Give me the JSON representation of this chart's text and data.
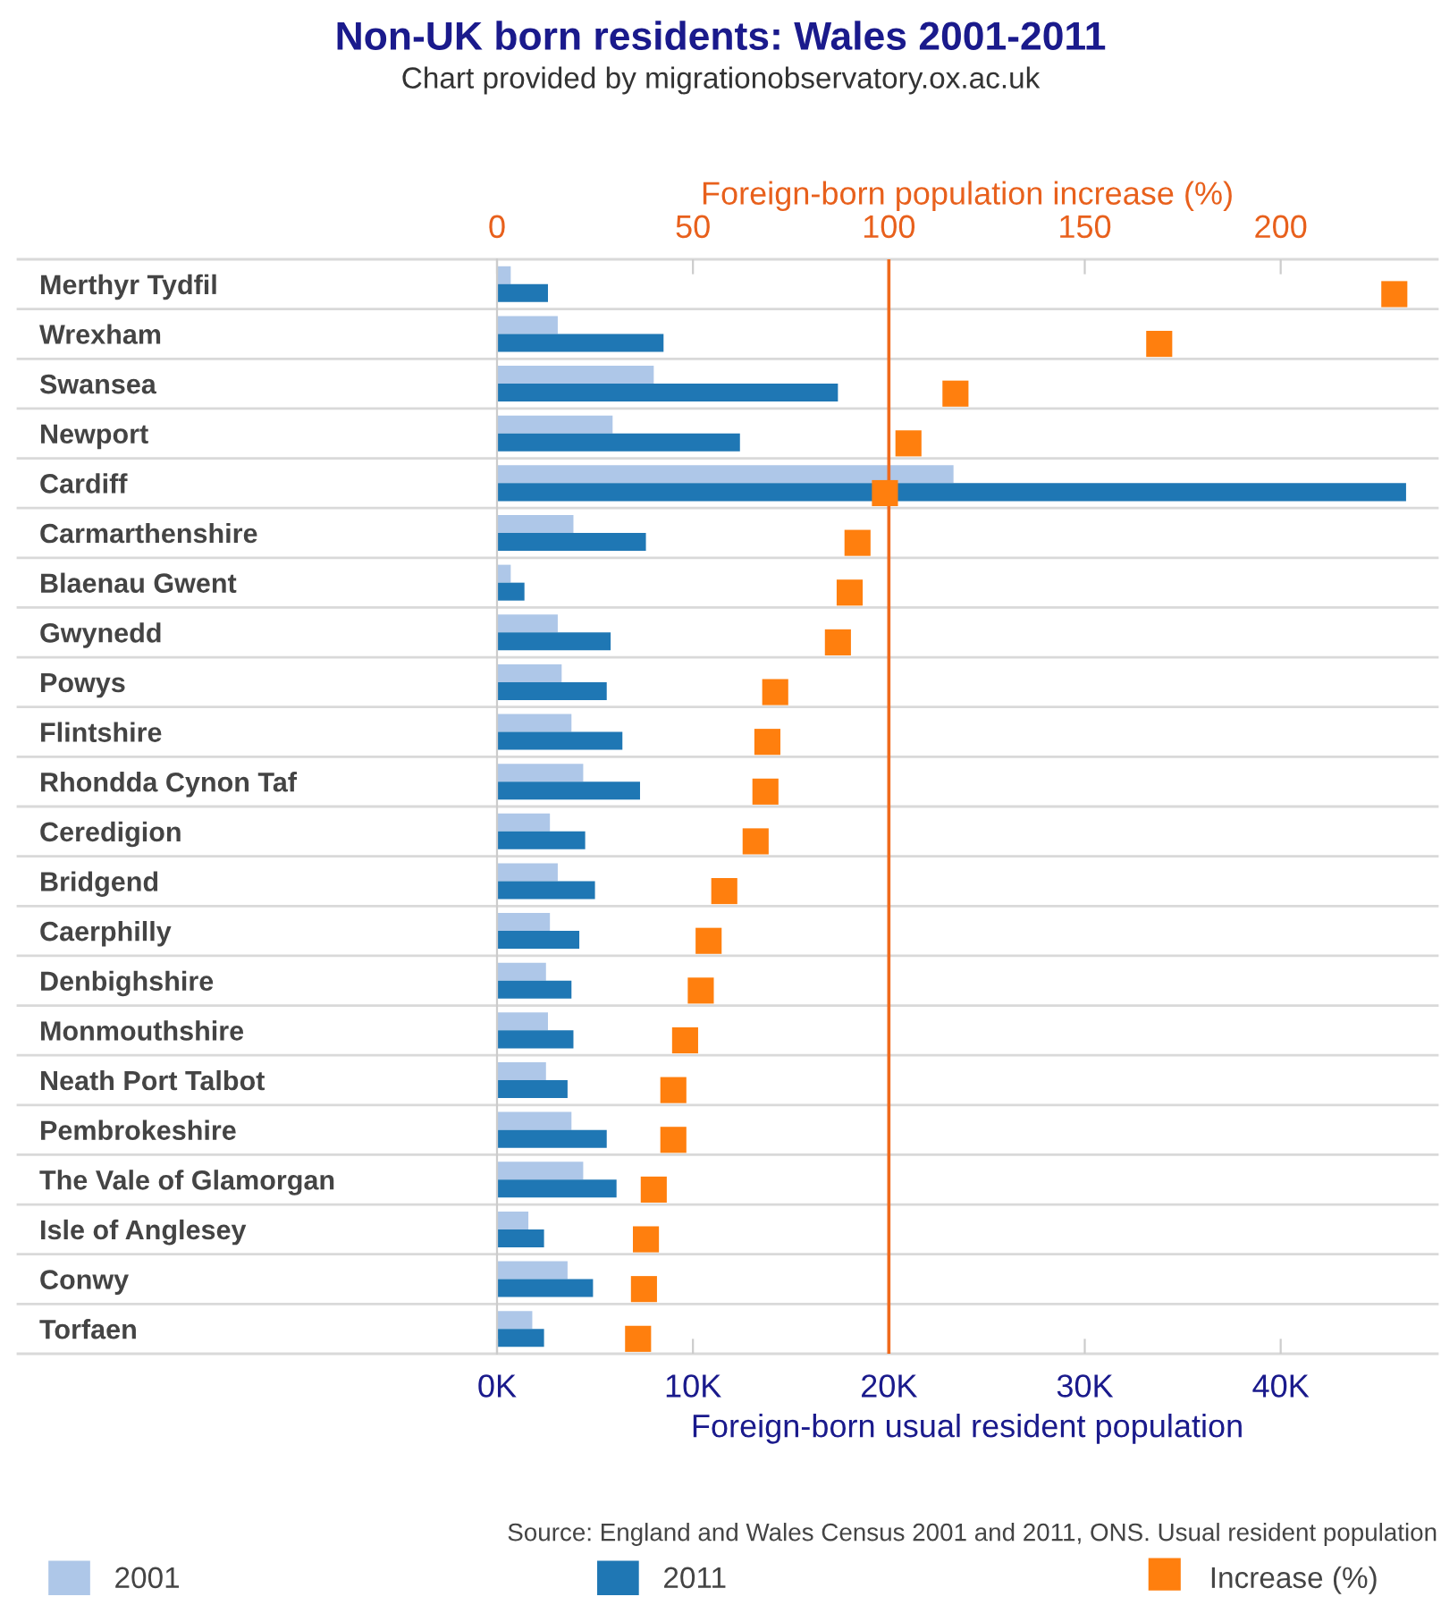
{
  "chart_data": {
    "type": "bar",
    "orientation": "horizontal",
    "title": "Non-UK born residents: Wales 2001-2011",
    "subtitle": "Chart provided by migrationobservatory.ox.ac.uk",
    "xlabel": "Foreign-born usual resident population",
    "x2label": "Foreign-born population increase (%)",
    "annotations": [
      "Source: England and Wales Census 2001 and 2011, ONS. Usual resident population"
    ],
    "categories": [
      "Merthyr Tydfil",
      "Wrexham",
      "Swansea",
      "Newport",
      "Cardiff",
      "Carmarthenshire",
      "Blaenau Gwent",
      "Gwynedd",
      "Powys",
      "Flintshire",
      "Rhondda Cynon Taf",
      "Ceredigion",
      "Bridgend",
      "Caerphilly",
      "Denbighshire",
      "Monmouthshire",
      "Neath Port Talbot",
      "Pembrokeshire",
      "The Vale of Glamorgan",
      "Isle of Anglesey",
      "Conwy",
      "Torfaen"
    ],
    "series": [
      {
        "name": "2001",
        "color": "#aec7e8",
        "values": [
          700,
          3100,
          8000,
          5900,
          23300,
          3900,
          700,
          3100,
          3300,
          3800,
          4400,
          2700,
          3100,
          2700,
          2500,
          2600,
          2500,
          3800,
          4400,
          1600,
          3600,
          1800
        ]
      },
      {
        "name": "2011",
        "color": "#1f77b4",
        "values": [
          2600,
          8500,
          17400,
          12400,
          46400,
          7600,
          1400,
          5800,
          5600,
          6400,
          7300,
          4500,
          5000,
          4200,
          3800,
          3900,
          3600,
          5600,
          6100,
          2400,
          4900,
          2400
        ]
      },
      {
        "name": "Increase (%)",
        "type": "scatter",
        "axis": "x2",
        "marker": "square",
        "color": "#ff7f0e",
        "values": [
          229,
          169,
          117,
          105,
          99,
          92,
          90,
          87,
          71,
          69,
          68.5,
          66,
          58,
          54,
          52,
          48,
          45,
          45,
          40,
          38,
          37.5,
          36
        ]
      }
    ],
    "xlim": [
      0,
      48000
    ],
    "xticks": [
      {
        "value": 0,
        "label": "0K"
      },
      {
        "value": 10000,
        "label": "10K"
      },
      {
        "value": 20000,
        "label": "20K"
      },
      {
        "value": 30000,
        "label": "30K"
      },
      {
        "value": 40000,
        "label": "40K"
      }
    ],
    "x2lim": [
      0,
      240
    ],
    "x2ticks": [
      0,
      50,
      100,
      150,
      200
    ],
    "ref_lines": [
      {
        "axis": "x2",
        "value": 100,
        "color": "#f06a1d"
      }
    ],
    "grid": "y",
    "legend": "bottom"
  }
}
